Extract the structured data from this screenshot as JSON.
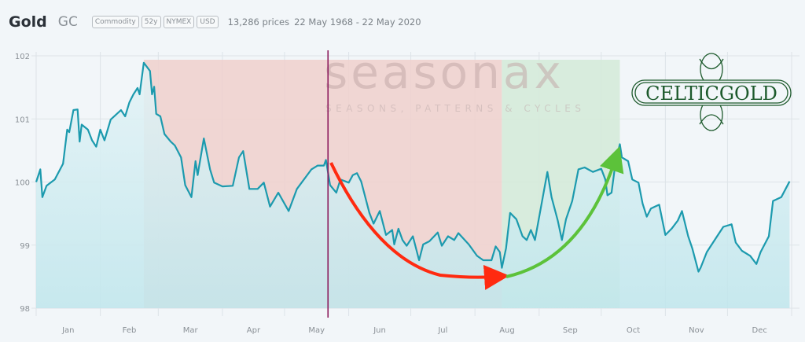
{
  "header": {
    "title": "Gold",
    "symbol": "GC",
    "badges": [
      "Commodity",
      "52y",
      "NYMEX",
      "USD"
    ],
    "prices_count": "13,286 prices",
    "date_range": "22 May 1968 - 22 May 2020"
  },
  "watermark": {
    "brand": "seasonax",
    "tagline": "SEASONS, PATTERNS & CYCLES"
  },
  "logo": {
    "text": "CELTICGOLD"
  },
  "colors": {
    "line": "#1c9aae",
    "area": "#bfe6ec",
    "bearish": "#f0d0cd",
    "bullish": "#d4ead8",
    "today_line": "#8b1a5c",
    "red_arrow": "#ff2a10",
    "green_arrow": "#5cc23a",
    "logo_green": "#1d5a2c"
  },
  "chart_data": {
    "type": "line",
    "title": "",
    "xlabel": "",
    "ylabel": "",
    "ylim": [
      98,
      102
    ],
    "yticks": [
      98,
      99,
      100,
      101,
      102
    ],
    "xtick_labels": [
      "Jan",
      "Feb",
      "Mar",
      "Apr",
      "May",
      "Jun",
      "Jul",
      "Aug",
      "Sep",
      "Oct",
      "Nov",
      "Dec"
    ],
    "grid": true,
    "today_marker": "05-22",
    "highlights": [
      {
        "kind": "bearish",
        "start": "02-22",
        "end": "08-14"
      },
      {
        "kind": "bullish",
        "start": "08-14",
        "end": "10-10"
      }
    ],
    "series": [
      {
        "x": [
          "01-01",
          "01-03",
          "01-04",
          "01-06",
          "01-10",
          "01-14",
          "01-16",
          "01-17",
          "01-19",
          "01-21",
          "01-22",
          "01-23",
          "01-26",
          "01-28",
          "01-30",
          "02-01",
          "02-03",
          "02-06",
          "02-11",
          "02-13",
          "02-15",
          "02-17",
          "02-19",
          "02-20",
          "02-22",
          "02-25",
          "02-26",
          "02-27",
          "02-28",
          "03-02",
          "03-04",
          "03-07",
          "03-09",
          "03-12",
          "03-14",
          "03-17",
          "03-19",
          "03-20",
          "03-23",
          "03-26",
          "03-28",
          "04-01",
          "04-06",
          "04-09",
          "04-11",
          "04-14",
          "04-18",
          "04-21",
          "04-24",
          "04-28",
          "05-03",
          "05-07",
          "05-14",
          "05-17",
          "05-20",
          "05-21",
          "05-23",
          "05-26",
          "05-28",
          "06-01",
          "06-03",
          "06-05",
          "06-07",
          "06-11",
          "06-13",
          "06-16",
          "06-19",
          "06-22",
          "06-23",
          "06-25",
          "06-27",
          "06-29",
          "07-02",
          "07-05",
          "07-07",
          "07-10",
          "07-14",
          "07-16",
          "07-19",
          "07-22",
          "07-24",
          "07-29",
          "08-02",
          "08-05",
          "08-09",
          "08-11",
          "08-13",
          "08-14",
          "08-16",
          "08-18",
          "08-21",
          "08-24",
          "08-26",
          "08-28",
          "08-30",
          "09-05",
          "09-07",
          "09-10",
          "09-12",
          "09-14",
          "09-17",
          "09-20",
          "09-23",
          "09-27",
          "10-01",
          "10-03",
          "10-04",
          "10-06",
          "10-08",
          "10-10",
          "10-11",
          "10-14",
          "10-16",
          "10-19",
          "10-21",
          "10-23",
          "10-25",
          "10-27",
          "10-29",
          "11-01",
          "11-04",
          "11-07",
          "11-09",
          "11-12",
          "11-14",
          "11-17",
          "11-18",
          "11-21",
          "11-26",
          "11-29",
          "12-03",
          "12-05",
          "12-08",
          "12-12",
          "12-15",
          "12-17",
          "12-21",
          "12-23",
          "12-27",
          "12-31"
        ],
        "y": [
          100.0,
          100.2,
          99.76,
          99.94,
          100.04,
          100.29,
          100.83,
          100.79,
          101.14,
          101.15,
          100.64,
          100.91,
          100.83,
          100.66,
          100.56,
          100.83,
          100.66,
          100.99,
          101.14,
          101.04,
          101.26,
          101.39,
          101.49,
          101.39,
          101.89,
          101.76,
          101.39,
          101.51,
          101.08,
          101.04,
          100.76,
          100.64,
          100.58,
          100.39,
          99.95,
          99.76,
          100.33,
          100.11,
          100.69,
          100.2,
          99.99,
          99.93,
          99.94,
          100.39,
          100.49,
          99.89,
          99.89,
          99.99,
          99.61,
          99.83,
          99.54,
          99.89,
          100.2,
          100.26,
          100.26,
          100.35,
          99.95,
          99.83,
          100.04,
          99.99,
          100.11,
          100.14,
          100.01,
          99.51,
          99.34,
          99.54,
          99.16,
          99.24,
          99.01,
          99.26,
          99.08,
          98.99,
          99.14,
          98.76,
          99.01,
          99.06,
          99.2,
          98.99,
          99.14,
          99.08,
          99.19,
          99.01,
          98.83,
          98.76,
          98.76,
          98.98,
          98.89,
          98.64,
          98.95,
          99.51,
          99.41,
          99.14,
          99.08,
          99.24,
          99.08,
          100.16,
          99.76,
          99.39,
          99.08,
          99.41,
          99.7,
          100.2,
          100.23,
          100.16,
          100.21,
          100.04,
          99.79,
          99.83,
          100.33,
          100.6,
          100.39,
          100.33,
          100.04,
          99.99,
          99.66,
          99.45,
          99.58,
          99.61,
          99.64,
          99.16,
          99.26,
          99.39,
          99.54,
          99.14,
          98.95,
          98.58,
          98.64,
          98.89,
          99.14,
          99.29,
          99.33,
          99.04,
          98.91,
          98.83,
          98.7,
          98.89,
          99.14,
          99.7,
          99.76,
          100.01
        ]
      }
    ]
  }
}
